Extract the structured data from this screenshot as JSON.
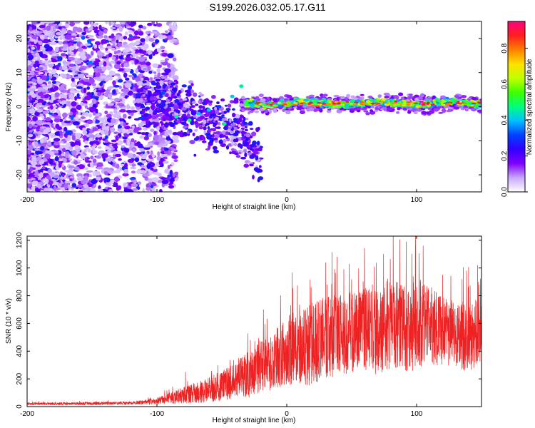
{
  "title": "S199.2026.032.05.17.G11",
  "chart_data": [
    {
      "type": "heatmap",
      "xlabel": "Height of straight line (km)",
      "ylabel": "Frequency (Hz)",
      "xlim": [
        -200,
        150
      ],
      "ylim": [
        -25,
        25
      ],
      "xticks": [
        -200,
        -100,
        0,
        100
      ],
      "yticks": [
        20,
        10,
        0,
        -10,
        -20
      ],
      "colorbar": {
        "label": "Normalized spectral amplitude",
        "range": [
          0,
          0.95
        ],
        "ticks": [
          0.0,
          0.2,
          0.4,
          0.6,
          0.8
        ],
        "tick_labels": [
          "0.0",
          "0.2",
          "0.4",
          "0.6",
          "0.8"
        ],
        "colors": [
          "#ffffff",
          "#c8a8ff",
          "#8000ff",
          "#3300ff",
          "#0040ff",
          "#00c0ff",
          "#00ff80",
          "#40ff00",
          "#c0ff00",
          "#ffe000",
          "#ff8000",
          "#ff2020",
          "#ff0080"
        ]
      },
      "description": "Broadband noise at heights below about -100 km; bright narrow signal near 0-2 Hz from about -30 km to 150 km, peaks ~0.9"
    },
    {
      "type": "line",
      "xlabel": "Height of straight line (km)",
      "ylabel": "SNR (10 * v/v)",
      "xlim": [
        -200,
        150
      ],
      "ylim": [
        0,
        1230
      ],
      "xticks": [
        -200,
        -100,
        0,
        100
      ],
      "yticks": [
        0,
        200,
        400,
        600,
        800,
        1000,
        1200
      ],
      "color": "#ee2222",
      "envelope": {
        "x": [
          -200,
          -150,
          -120,
          -100,
          -90,
          -80,
          -60,
          -40,
          -30,
          -20,
          -10,
          0,
          10,
          20,
          30,
          40,
          50,
          60,
          70,
          80,
          90,
          100,
          110,
          120,
          130,
          140,
          150
        ],
        "base": [
          20,
          22,
          25,
          40,
          60,
          80,
          120,
          180,
          230,
          280,
          330,
          400,
          430,
          450,
          480,
          520,
          530,
          560,
          540,
          600,
          560,
          600,
          580,
          540,
          520,
          500,
          560
        ],
        "amp": [
          15,
          18,
          20,
          40,
          70,
          100,
          150,
          220,
          280,
          320,
          360,
          420,
          450,
          500,
          520,
          500,
          480,
          500,
          520,
          560,
          520,
          560,
          480,
          420,
          400,
          420,
          400
        ],
        "peaks": [
          [
            -78,
            250
          ],
          [
            -28,
            480
          ],
          [
            -18,
            700
          ],
          [
            30,
            1040
          ],
          [
            48,
            1030
          ],
          [
            60,
            1050
          ],
          [
            82,
            1230
          ],
          [
            92,
            1190
          ],
          [
            99,
            1080
          ],
          [
            105,
            1160
          ],
          [
            120,
            950
          ],
          [
            135,
            920
          ],
          [
            147,
            1020
          ]
        ]
      }
    }
  ]
}
